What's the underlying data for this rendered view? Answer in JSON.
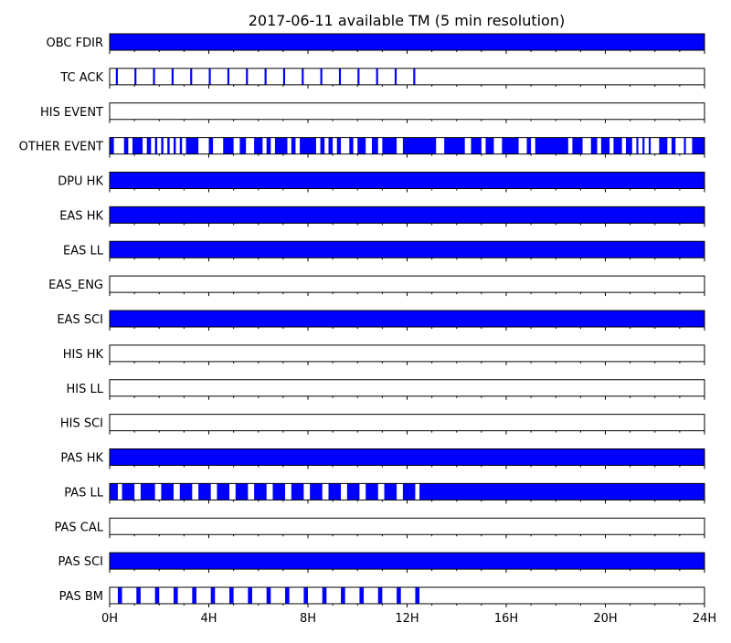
{
  "chart_data": {
    "type": "timeline",
    "title": "2017-06-11 available TM (5 min resolution)",
    "x_range_hours": [
      0,
      24
    ],
    "x_tick_labels": [
      "0H",
      "4H",
      "8H",
      "12H",
      "16H",
      "20H",
      "24H"
    ],
    "x_tick_values_hours": [
      0,
      4,
      8,
      12,
      16,
      20,
      24
    ],
    "x_minor_tick_step_hours": 1,
    "colors": {
      "available": "#0000ff",
      "frame": "#000000",
      "background": "#ffffff"
    },
    "legend": "none",
    "grid": false,
    "rows": [
      {
        "label": "OBC FDIR",
        "available_hours": [
          [
            0,
            24
          ]
        ]
      },
      {
        "label": "TC ACK",
        "available_hours": [
          [
            0.25,
            0.33
          ],
          [
            1.0,
            1.08
          ],
          [
            1.75,
            1.83
          ],
          [
            2.5,
            2.58
          ],
          [
            3.25,
            3.33
          ],
          [
            4.0,
            4.08
          ],
          [
            4.75,
            4.83
          ],
          [
            5.5,
            5.58
          ],
          [
            6.25,
            6.33
          ],
          [
            7.0,
            7.08
          ],
          [
            7.75,
            7.83
          ],
          [
            8.5,
            8.58
          ],
          [
            9.25,
            9.33
          ],
          [
            10.0,
            10.08
          ],
          [
            10.75,
            10.83
          ],
          [
            11.5,
            11.58
          ],
          [
            12.25,
            12.33
          ]
        ]
      },
      {
        "label": "HIS EVENT",
        "available_hours": []
      },
      {
        "label": "OTHER EVENT",
        "available_hours": [
          [
            0,
            0.17
          ],
          [
            0.58,
            0.75
          ],
          [
            0.92,
            1.33
          ],
          [
            1.5,
            1.67
          ],
          [
            1.83,
            1.92
          ],
          [
            2.08,
            2.17
          ],
          [
            2.33,
            2.42
          ],
          [
            2.58,
            2.67
          ],
          [
            2.83,
            2.92
          ],
          [
            3.08,
            3.58
          ],
          [
            4.0,
            4.17
          ],
          [
            4.58,
            5.0
          ],
          [
            5.25,
            5.5
          ],
          [
            5.83,
            6.17
          ],
          [
            6.33,
            6.5
          ],
          [
            6.67,
            7.17
          ],
          [
            7.33,
            7.5
          ],
          [
            7.67,
            8.33
          ],
          [
            8.5,
            8.67
          ],
          [
            8.83,
            9.0
          ],
          [
            9.17,
            9.33
          ],
          [
            9.67,
            9.83
          ],
          [
            10.0,
            10.33
          ],
          [
            10.58,
            10.83
          ],
          [
            11.0,
            11.58
          ],
          [
            11.83,
            13.17
          ],
          [
            13.5,
            14.33
          ],
          [
            14.58,
            15.0
          ],
          [
            15.17,
            15.5
          ],
          [
            15.83,
            16.5
          ],
          [
            16.83,
            17.0
          ],
          [
            17.17,
            18.5
          ],
          [
            18.67,
            19.08
          ],
          [
            19.42,
            19.67
          ],
          [
            19.83,
            20.17
          ],
          [
            20.33,
            20.67
          ],
          [
            20.83,
            21.08
          ],
          [
            21.25,
            21.33
          ],
          [
            21.5,
            21.58
          ],
          [
            21.75,
            21.83
          ],
          [
            22.17,
            22.5
          ],
          [
            22.67,
            22.83
          ],
          [
            23.17,
            23.25
          ],
          [
            23.5,
            24.0
          ]
        ]
      },
      {
        "label": "DPU HK",
        "available_hours": [
          [
            0,
            24
          ]
        ]
      },
      {
        "label": "EAS HK",
        "available_hours": [
          [
            0,
            24
          ]
        ]
      },
      {
        "label": "EAS LL",
        "available_hours": [
          [
            0,
            24
          ]
        ]
      },
      {
        "label": "EAS_ENG",
        "available_hours": []
      },
      {
        "label": "EAS SCI",
        "available_hours": [
          [
            0,
            24
          ]
        ]
      },
      {
        "label": "HIS HK",
        "available_hours": []
      },
      {
        "label": "HIS LL",
        "available_hours": []
      },
      {
        "label": "HIS SCI",
        "available_hours": []
      },
      {
        "label": "PAS HK",
        "available_hours": [
          [
            0,
            24
          ]
        ]
      },
      {
        "label": "PAS LL",
        "available_hours": [
          [
            0,
            0.33
          ],
          [
            0.5,
            1.0
          ],
          [
            1.25,
            1.83
          ],
          [
            2.08,
            2.58
          ],
          [
            2.83,
            3.33
          ],
          [
            3.58,
            4.08
          ],
          [
            4.33,
            4.83
          ],
          [
            5.08,
            5.58
          ],
          [
            5.83,
            6.33
          ],
          [
            6.58,
            7.08
          ],
          [
            7.33,
            7.83
          ],
          [
            8.08,
            8.58
          ],
          [
            8.83,
            9.33
          ],
          [
            9.58,
            10.08
          ],
          [
            10.33,
            10.83
          ],
          [
            11.08,
            11.58
          ],
          [
            11.83,
            12.33
          ],
          [
            12.5,
            24.0
          ]
        ]
      },
      {
        "label": "PAS CAL",
        "available_hours": []
      },
      {
        "label": "PAS SCI",
        "available_hours": [
          [
            0,
            24
          ]
        ]
      },
      {
        "label": "PAS BM",
        "available_hours": [
          [
            0.33,
            0.5
          ],
          [
            1.08,
            1.25
          ],
          [
            1.83,
            2.0
          ],
          [
            2.58,
            2.75
          ],
          [
            3.33,
            3.5
          ],
          [
            4.08,
            4.25
          ],
          [
            4.83,
            5.0
          ],
          [
            5.58,
            5.75
          ],
          [
            6.33,
            6.5
          ],
          [
            7.08,
            7.25
          ],
          [
            7.83,
            8.0
          ],
          [
            8.58,
            8.75
          ],
          [
            9.33,
            9.5
          ],
          [
            10.08,
            10.25
          ],
          [
            10.83,
            11.0
          ],
          [
            11.58,
            11.75
          ],
          [
            12.33,
            12.5
          ]
        ]
      }
    ]
  }
}
